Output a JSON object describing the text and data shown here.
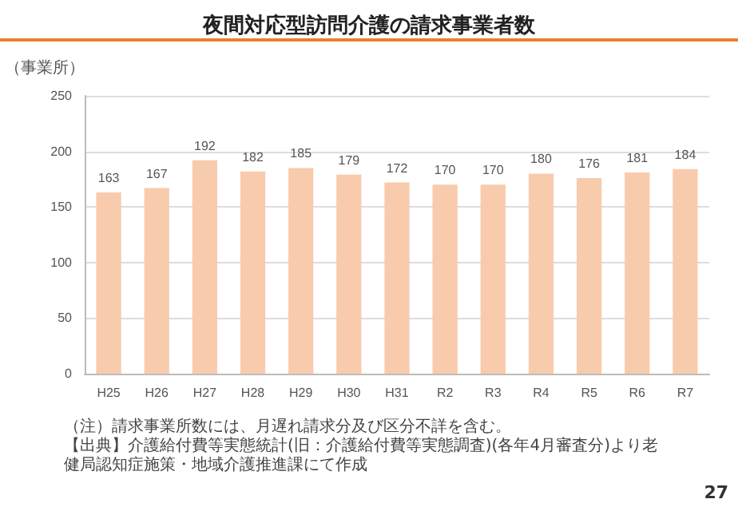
{
  "chart_data": {
    "type": "bar",
    "title": "夜間対応型訪問介護の請求事業者数",
    "ylabel": "（事業所）",
    "categories": [
      "H25",
      "H26",
      "H27",
      "H28",
      "H29",
      "H30",
      "H31",
      "R2",
      "R3",
      "R4",
      "R5",
      "R6",
      "R7"
    ],
    "values": [
      163,
      167,
      192,
      182,
      185,
      179,
      172,
      170,
      170,
      180,
      176,
      181,
      184
    ],
    "color": "#f8cbad",
    "ylim": [
      0,
      250
    ],
    "yticks": [
      0,
      50,
      100,
      150,
      200,
      250
    ],
    "grid": "y",
    "data_labels": true,
    "annotations": [
      "（注）請求事業所数には、月遅れ請求分及び区分不詳を含む。",
      "【出典】介護給付費等実態統計(旧：介護給付費等実態調査)(各年4月審査分)より老健局認知症施策・地域介護推進課にて作成",
      "27"
    ]
  }
}
